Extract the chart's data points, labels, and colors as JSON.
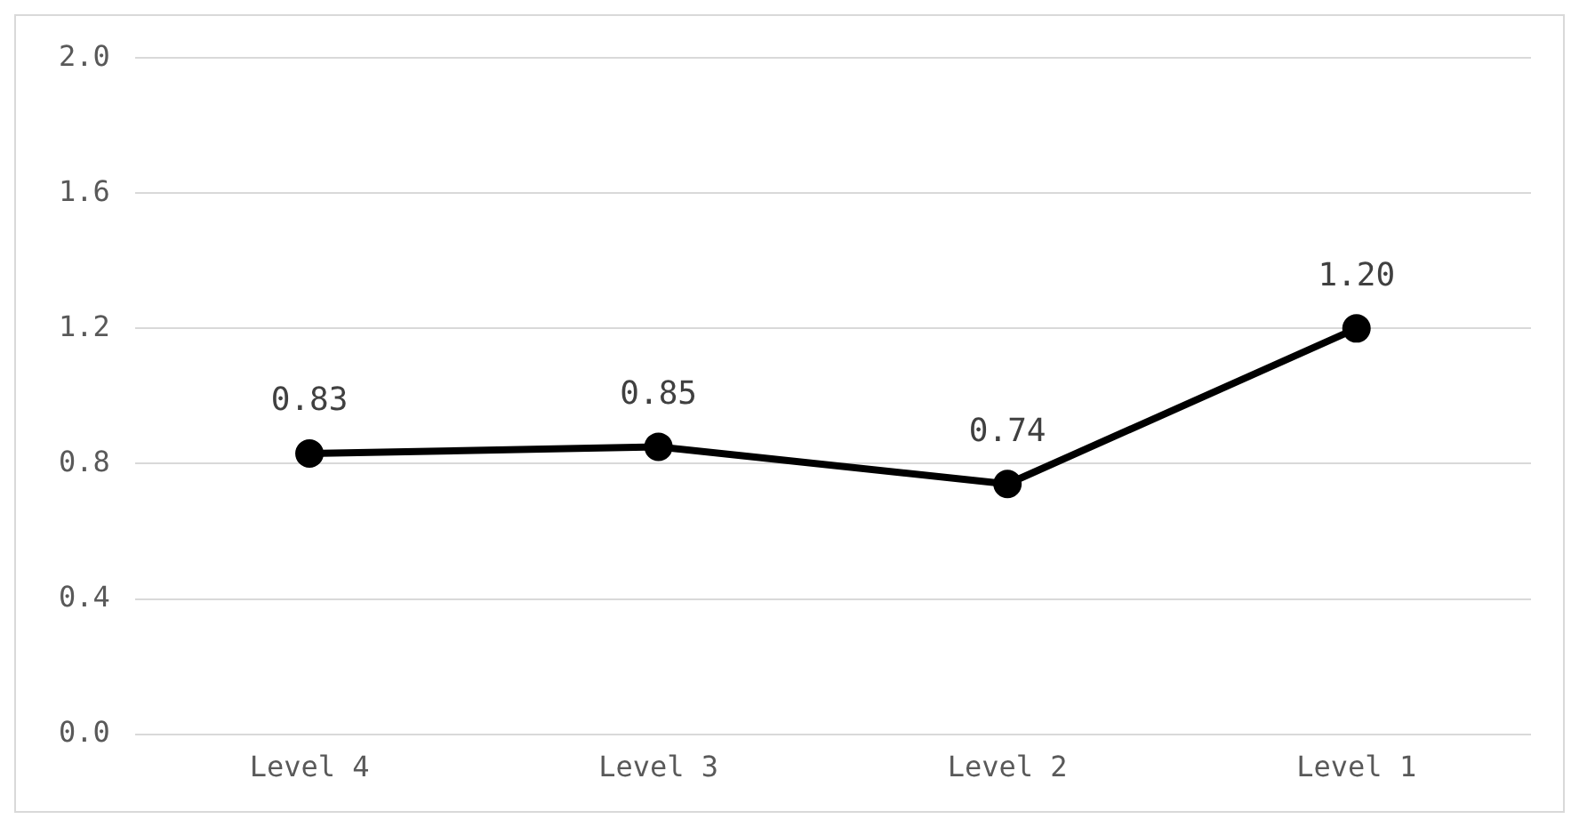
{
  "chart_data": {
    "type": "line",
    "categories": [
      "Level 4",
      "Level 3",
      "Level 2",
      "Level 1"
    ],
    "series": [
      {
        "color": "#000000",
        "values": [
          0.83,
          0.85,
          0.74,
          1.2
        ],
        "value_labels": [
          "0.83",
          "0.85",
          "0.74",
          "1.20"
        ]
      }
    ],
    "ylim": [
      0,
      2
    ],
    "yticks": [
      {
        "value": 0,
        "label": "0.0"
      },
      0.4,
      0.8,
      1.2,
      1.6,
      {
        "value": 2,
        "label": "2.0"
      }
    ],
    "grid": "y",
    "legend": false,
    "marker": "circle",
    "line_style": "solid"
  }
}
